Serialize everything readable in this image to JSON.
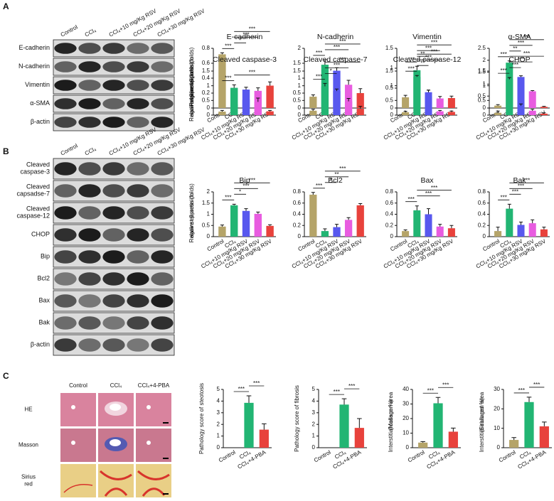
{
  "panel_labels": [
    "A",
    "B",
    "C"
  ],
  "blot_a": {
    "lanes": [
      "Control",
      "CCl₄",
      "CCl₄+10 mg/Kg RSV",
      "CCl₄+20 mg/Kg RSV",
      "CCl₄+30 mg/Kg RSV"
    ],
    "rows": [
      [
        "E-cadherin"
      ],
      [
        "N-cadherin"
      ],
      [
        "Vimentin"
      ],
      [
        "α-SMA"
      ],
      [
        "β-actin"
      ]
    ]
  },
  "blot_b": {
    "lanes": [
      "Control",
      "CCl₄",
      "CCl₄+10 mg/Kg RSV",
      "CCl₄+20 mg/Kg RSV",
      "CCl₄+30 mg/Kg RSV"
    ],
    "rows": [
      [
        "Cleaved",
        "caspase-3"
      ],
      [
        "Cleaved",
        "capsadse-7"
      ],
      [
        "Cleaved",
        "caspase-12"
      ],
      [
        "CHOP"
      ],
      [
        "Bip"
      ],
      [
        "Bcl2"
      ],
      [
        "Bax"
      ],
      [
        "Bak"
      ],
      [
        "β-actin"
      ]
    ]
  },
  "histology": {
    "columns": [
      "Control",
      "CCl₄",
      "CCl₄+4-PBA"
    ],
    "rows": [
      [
        "HE"
      ],
      [
        "Masson"
      ],
      [
        "Sirius",
        "red"
      ]
    ]
  },
  "chart_data": [
    {
      "type": "bar",
      "title": "E-cadherin",
      "ylabel": [
        "Relative expression",
        "against β-actin (folds)"
      ],
      "categories": [
        "Control",
        "CCl₄",
        "CCl₄+10 mg/Kg RSV",
        "CCl₄+20 mg/Kg RSV",
        "CCl₄+30 mg/Kg RSV"
      ],
      "values": [
        0.72,
        0.05,
        0.11,
        0.23,
        0.3
      ],
      "errors": [
        0.02,
        0.03,
        0.02,
        0.04,
        0.05
      ],
      "colors": [
        "#b5a469",
        "#22b573",
        "#5858ee",
        "#e85ce0",
        "#e8423c"
      ],
      "ylim": [
        0,
        0.8
      ],
      "yticks": [
        0,
        0.2,
        0.4,
        0.6,
        0.8
      ],
      "significance": [
        {
          "between": [
            0,
            1
          ],
          "label": "***"
        },
        {
          "between": [
            1,
            2
          ],
          "label": "*"
        },
        {
          "between": [
            1,
            3
          ],
          "label": "***"
        },
        {
          "between": [
            1,
            4
          ],
          "label": "***"
        }
      ]
    },
    {
      "type": "bar",
      "title": "N-cadherin",
      "categories": [
        "Control",
        "CCl₄",
        "CCl₄+10 mg/Kg RSV",
        "CCl₄+20 mg/Kg RSV",
        "CCl₄+30 mg/Kg RSV"
      ],
      "values": [
        0.38,
        1.45,
        1.25,
        0.78,
        0.5
      ],
      "errors": [
        0.06,
        0.17,
        0.1,
        0.15,
        0.15
      ],
      "colors": [
        "#b5a469",
        "#22b573",
        "#5858ee",
        "#e85ce0",
        "#e8423c"
      ],
      "ylim": [
        0,
        2
      ],
      "yticks": [
        0,
        0.5,
        1,
        1.5,
        2
      ],
      "significance": [
        {
          "between": [
            0,
            1
          ],
          "label": "***"
        },
        {
          "between": [
            1,
            3
          ],
          "label": "***"
        },
        {
          "between": [
            1,
            4
          ],
          "label": "***"
        }
      ]
    },
    {
      "type": "bar",
      "title": "Vimentin",
      "categories": [
        "Control",
        "CCl₄",
        "CCl₄+10 mg/Kg RSV",
        "CCl₄+20 mg/Kg RSV",
        "CCl₄+30 mg/Kg RSV"
      ],
      "values": [
        0.27,
        0.95,
        0.3,
        0.24,
        0.25
      ],
      "errors": [
        0.05,
        0.1,
        0.15,
        0.05,
        0.05
      ],
      "colors": [
        "#b5a469",
        "#22b573",
        "#5858ee",
        "#e85ce0",
        "#e8423c"
      ],
      "ylim": [
        0,
        1.5
      ],
      "yticks": [
        0,
        0.5,
        1,
        1.5
      ],
      "significance": [
        {
          "between": [
            0,
            1
          ],
          "label": "***"
        },
        {
          "between": [
            1,
            2
          ],
          "label": "**"
        },
        {
          "between": [
            1,
            3
          ],
          "label": "***"
        },
        {
          "between": [
            1,
            4
          ],
          "label": "***"
        }
      ]
    },
    {
      "type": "bar",
      "title": "α-SMA",
      "categories": [
        "Control",
        "CCl₄",
        "CCl₄+10 mg/Kg RSV",
        "CCl₄+20 mg/Kg RSV",
        "CCl₄+30 mg/Kg RSV"
      ],
      "values": [
        0.1,
        1.9,
        1.3,
        0.7,
        0.05
      ],
      "errors": [
        0.04,
        0.07,
        0.05,
        0.03,
        0.02
      ],
      "colors": [
        "#b5a469",
        "#22b573",
        "#5858ee",
        "#e85ce0",
        "#e8423c"
      ],
      "ylim": [
        0,
        2.5
      ],
      "yticks": [
        0,
        0.5,
        1,
        1.5,
        2,
        2.5
      ],
      "significance": [
        {
          "between": [
            0,
            1
          ],
          "label": "***"
        },
        {
          "between": [
            1,
            2
          ],
          "label": "**"
        },
        {
          "between": [
            1,
            3
          ],
          "label": "***"
        },
        {
          "between": [
            1,
            4
          ],
          "label": "***"
        }
      ]
    },
    {
      "type": "bar",
      "title": "Cleaved caspase-3",
      "ylabel": [
        "Relative expression",
        "against β-actin (folds)"
      ],
      "values": [
        0.12,
        0.93,
        0.87,
        0.45,
        0.13
      ],
      "errors": [
        0.04,
        0.1,
        0.08,
        0.13,
        0.03
      ],
      "colors": [
        "#b5a469",
        "#22b573",
        "#5858ee",
        "#e85ce0",
        "#e8423c"
      ],
      "ylim": [
        0,
        1.5
      ],
      "yticks": [
        0,
        0.5,
        1,
        1.5
      ],
      "significance": [
        {
          "between": [
            0,
            1
          ],
          "label": "***"
        },
        {
          "between": [
            1,
            4
          ],
          "label": "***"
        }
      ]
    },
    {
      "type": "bar",
      "title": "Cleaved caspase-7",
      "values": [
        0.15,
        0.98,
        0.82,
        0.47,
        0.22
      ],
      "errors": [
        0.05,
        0.1,
        0.07,
        0.1,
        0.08
      ],
      "colors": [
        "#b5a469",
        "#22b573",
        "#5858ee",
        "#e85ce0",
        "#e8423c"
      ],
      "ylim": [
        0,
        1.5
      ],
      "yticks": [
        0,
        0.5,
        1,
        1.5
      ],
      "significance": [
        {
          "between": [
            0,
            1
          ],
          "label": "***"
        },
        {
          "between": [
            1,
            2
          ],
          "label": "*"
        },
        {
          "between": [
            1,
            3
          ],
          "label": "***"
        },
        {
          "between": [
            1,
            4
          ],
          "label": "***"
        }
      ]
    },
    {
      "type": "bar",
      "title": "Cleaved caspase-12",
      "values": [
        0.1,
        1.3,
        0.78,
        0.13,
        0.11
      ],
      "errors": [
        0.03,
        0.05,
        0.07,
        0.03,
        0.03
      ],
      "colors": [
        "#b5a469",
        "#22b573",
        "#5858ee",
        "#e85ce0",
        "#e8423c"
      ],
      "ylim": [
        0,
        1.5
      ],
      "yticks": [
        0,
        0.5,
        1,
        1.5
      ],
      "significance": [
        {
          "between": [
            0,
            1
          ],
          "label": "***"
        },
        {
          "between": [
            1,
            2
          ],
          "label": "**"
        },
        {
          "between": [
            1,
            3
          ],
          "label": "***"
        },
        {
          "between": [
            1,
            4
          ],
          "label": "***"
        }
      ]
    },
    {
      "type": "bar",
      "title": "CHOP",
      "values": [
        0.08,
        1.22,
        0.32,
        0.15,
        0.05
      ],
      "errors": [
        0.06,
        0.06,
        0.06,
        0.05,
        0.03
      ],
      "colors": [
        "#b5a469",
        "#22b573",
        "#5858ee",
        "#e85ce0",
        "#e8423c"
      ],
      "ylim": [
        0,
        1.5
      ],
      "yticks": [
        0,
        0.5,
        1,
        1.5
      ],
      "significance": [
        {
          "between": [
            0,
            1
          ],
          "label": "***"
        },
        {
          "between": [
            1,
            2
          ],
          "label": "***"
        },
        {
          "between": [
            1,
            3
          ],
          "label": "***"
        },
        {
          "between": [
            1,
            4
          ],
          "label": "***"
        }
      ]
    },
    {
      "type": "bar",
      "title": "Bip",
      "ylabel": [
        "Relative expression",
        "against β-actin (folds)"
      ],
      "categories": [
        "Control",
        "CCl₄",
        "CCl₄+10 mg/Kg RSV",
        "CCl₄+20 mg/Kg RSV",
        "CCl₄+30 mg/Kg RSV"
      ],
      "values": [
        0.45,
        1.4,
        1.15,
        1.02,
        0.48
      ],
      "errors": [
        0.07,
        0.05,
        0.1,
        0.08,
        0.05
      ],
      "colors": [
        "#b5a469",
        "#22b573",
        "#5858ee",
        "#e85ce0",
        "#e8423c"
      ],
      "ylim": [
        0,
        2
      ],
      "yticks": [
        0,
        0.5,
        1,
        1.5,
        2
      ],
      "significance": [
        {
          "between": [
            0,
            1
          ],
          "label": "***"
        },
        {
          "between": [
            1,
            2
          ],
          "label": "*"
        },
        {
          "between": [
            1,
            3
          ],
          "label": "***"
        },
        {
          "between": [
            1,
            4
          ],
          "label": "***"
        }
      ]
    },
    {
      "type": "bar",
      "title": "Bcl2",
      "categories": [
        "Control",
        "CCl₄",
        "CCl₄+10 mg/Kg RSV",
        "CCl₄+20 mg/Kg RSV",
        "CCl₄+30 mg/Kg RSV"
      ],
      "values": [
        0.75,
        0.1,
        0.17,
        0.3,
        0.56
      ],
      "errors": [
        0.04,
        0.04,
        0.05,
        0.04,
        0.03
      ],
      "colors": [
        "#b5a469",
        "#22b573",
        "#5858ee",
        "#e85ce0",
        "#e8423c"
      ],
      "ylim": [
        0,
        0.8
      ],
      "yticks": [
        0,
        0.2,
        0.4,
        0.6,
        0.8
      ],
      "significance": [
        {
          "between": [
            0,
            1
          ],
          "label": "***"
        },
        {
          "between": [
            1,
            2
          ],
          "label": "*"
        },
        {
          "between": [
            1,
            3
          ],
          "label": "**"
        },
        {
          "between": [
            1,
            4
          ],
          "label": "***"
        }
      ]
    },
    {
      "type": "bar",
      "title": "Bax",
      "categories": [
        "Control",
        "CCl₄",
        "CCl₄+10 mg/Kg RSV",
        "CCl₄+20 mg/Kg RSV",
        "CCl₄+30 mg/Kg RSV"
      ],
      "values": [
        0.1,
        0.47,
        0.4,
        0.18,
        0.15
      ],
      "errors": [
        0.02,
        0.08,
        0.1,
        0.04,
        0.05
      ],
      "colors": [
        "#b5a469",
        "#22b573",
        "#5858ee",
        "#e85ce0",
        "#e8423c"
      ],
      "ylim": [
        0,
        0.8
      ],
      "yticks": [
        0,
        0.2,
        0.4,
        0.6,
        0.8
      ],
      "significance": [
        {
          "between": [
            0,
            1
          ],
          "label": "***"
        },
        {
          "between": [
            1,
            3
          ],
          "label": "***"
        },
        {
          "between": [
            1,
            4
          ],
          "label": "***"
        }
      ]
    },
    {
      "type": "bar",
      "title": "Bak",
      "categories": [
        "Control",
        "CCl₄",
        "CCl₄+10 mg/Kg RSV",
        "CCl₄+20 mg/Kg RSV",
        "CCl₄+30 mg/Kg RSV"
      ],
      "values": [
        0.1,
        0.5,
        0.21,
        0.24,
        0.13
      ],
      "errors": [
        0.07,
        0.08,
        0.05,
        0.06,
        0.04
      ],
      "colors": [
        "#b5a469",
        "#22b573",
        "#5858ee",
        "#e85ce0",
        "#e8423c"
      ],
      "ylim": [
        0,
        0.8
      ],
      "yticks": [
        0,
        0.2,
        0.4,
        0.6,
        0.8
      ],
      "significance": [
        {
          "between": [
            0,
            1
          ],
          "label": "***"
        },
        {
          "between": [
            1,
            2
          ],
          "label": "***"
        },
        {
          "between": [
            1,
            3
          ],
          "label": "***"
        },
        {
          "between": [
            1,
            4
          ],
          "label": "***"
        }
      ]
    },
    {
      "type": "bar",
      "ylabel": [
        "Pathology score of steotosis"
      ],
      "categories": [
        "Control",
        "CCl₄",
        "CCl₄+4-PBA"
      ],
      "values": [
        0,
        3.85,
        1.55
      ],
      "errors": [
        0,
        0.6,
        0.5
      ],
      "colors": [
        "#b5a469",
        "#22b573",
        "#e8423c"
      ],
      "ylim": [
        0,
        5
      ],
      "yticks": [
        0,
        1,
        2,
        3,
        4,
        5
      ],
      "significance": [
        {
          "between": [
            0,
            1
          ],
          "label": "***"
        },
        {
          "between": [
            1,
            2
          ],
          "label": "***"
        }
      ]
    },
    {
      "type": "bar",
      "ylabel": [
        "Pathology score of fibrosis"
      ],
      "categories": [
        "Control",
        "CCl₄",
        "CCl₄+4-PBA"
      ],
      "values": [
        0,
        3.7,
        1.7
      ],
      "errors": [
        0,
        0.5,
        0.8
      ],
      "colors": [
        "#b5a469",
        "#22b573",
        "#e8423c"
      ],
      "ylim": [
        0,
        5
      ],
      "yticks": [
        0,
        1,
        2,
        3,
        4,
        5
      ],
      "significance": [
        {
          "between": [
            0,
            1
          ],
          "label": "***"
        },
        {
          "between": [
            1,
            2
          ],
          "label": "***"
        }
      ]
    },
    {
      "type": "bar",
      "ylabel": [
        "Interstitial collagen area",
        "(Masson %)"
      ],
      "categories": [
        "Control",
        "CCl₄",
        "CCl₄+4-PBA"
      ],
      "values": [
        3.5,
        30.5,
        11
      ],
      "errors": [
        0.7,
        4,
        2.5
      ],
      "colors": [
        "#b5a469",
        "#22b573",
        "#e8423c"
      ],
      "ylim": [
        0,
        40
      ],
      "yticks": [
        0,
        10,
        20,
        30,
        40
      ],
      "significance": [
        {
          "between": [
            0,
            1
          ],
          "label": "***"
        },
        {
          "between": [
            1,
            2
          ],
          "label": "***"
        }
      ]
    },
    {
      "type": "bar",
      "ylabel": [
        "Interstitial collagen area",
        "(Sirius red %)"
      ],
      "categories": [
        "Control",
        "CCl₄",
        "CCl₄+4-PBA"
      ],
      "values": [
        4,
        23.5,
        11
      ],
      "errors": [
        1.2,
        2.5,
        2.2
      ],
      "colors": [
        "#b5a469",
        "#22b573",
        "#e8423c"
      ],
      "ylim": [
        0,
        30
      ],
      "yticks": [
        0,
        10,
        20,
        30
      ],
      "significance": [
        {
          "between": [
            0,
            1
          ],
          "label": "***"
        },
        {
          "between": [
            1,
            2
          ],
          "label": "***"
        }
      ]
    }
  ]
}
